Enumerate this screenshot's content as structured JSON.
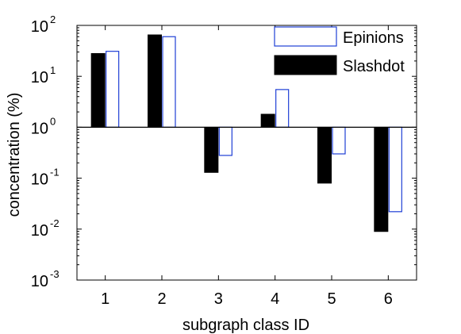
{
  "chart_data": {
    "type": "bar",
    "y_scale": "log",
    "baseline": 1,
    "ylim": [
      0.001,
      100
    ],
    "y_ticks": [
      {
        "base": "10",
        "exp": "-3",
        "value": 0.001
      },
      {
        "base": "10",
        "exp": "-2",
        "value": 0.01
      },
      {
        "base": "10",
        "exp": "-1",
        "value": 0.1
      },
      {
        "base": "10",
        "exp": "0",
        "value": 1
      },
      {
        "base": "10",
        "exp": "1",
        "value": 10
      },
      {
        "base": "10",
        "exp": "2",
        "value": 100
      }
    ],
    "categories": [
      "1",
      "2",
      "3",
      "4",
      "5",
      "6"
    ],
    "xlabel": "subgraph class ID",
    "ylabel": "concentration (%)",
    "grid": false,
    "legend_position": "top-right",
    "series": [
      {
        "name": "Slashdot",
        "color": "#000000",
        "style": "filled",
        "values": [
          28,
          65,
          0.13,
          1.8,
          0.08,
          0.009
        ]
      },
      {
        "name": "Epinions",
        "color": "#1f3fd6",
        "style": "outline",
        "values": [
          31,
          60,
          0.28,
          5.5,
          0.3,
          0.022
        ]
      }
    ],
    "legend_order": [
      "Epinions",
      "Slashdot"
    ]
  }
}
